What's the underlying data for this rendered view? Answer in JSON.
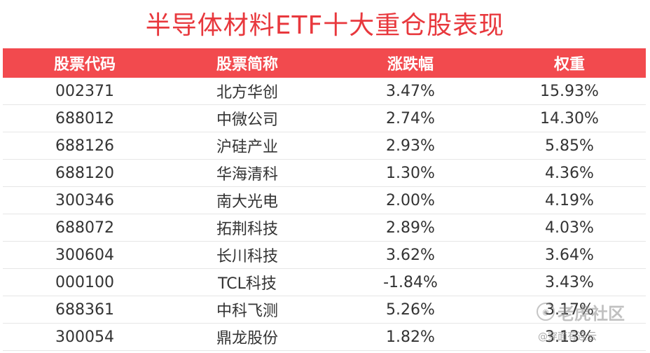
{
  "title": "半导体材料ETF十大重仓股表现",
  "table": {
    "headers": [
      "股票代码",
      "股票简称",
      "涨跌幅",
      "权重"
    ],
    "rows": [
      [
        "002371",
        "北方华创",
        "3.47%",
        "15.93%"
      ],
      [
        "688012",
        "中微公司",
        "2.74%",
        "14.30%"
      ],
      [
        "688126",
        "沪硅产业",
        "2.93%",
        "5.85%"
      ],
      [
        "688120",
        "华海清科",
        "1.30%",
        "4.36%"
      ],
      [
        "300346",
        "南大光电",
        "2.00%",
        "4.19%"
      ],
      [
        "688072",
        "拓荆科技",
        "2.89%",
        "4.03%"
      ],
      [
        "300604",
        "长川科技",
        "3.62%",
        "3.64%"
      ],
      [
        "000100",
        "TCL科技",
        "-1.84%",
        "3.43%"
      ],
      [
        "688361",
        "中科飞测",
        "5.26%",
        "3.17%"
      ],
      [
        "300054",
        "鼎龙股份",
        "1.82%",
        "3.13%"
      ]
    ]
  },
  "watermark": {
    "main": "老虎社区",
    "sub": "@穿面有连云"
  },
  "colors": {
    "title": "#e8383d",
    "header_bg": "#f24a4e",
    "header_text": "#ffffff",
    "body_text": "#333333"
  }
}
